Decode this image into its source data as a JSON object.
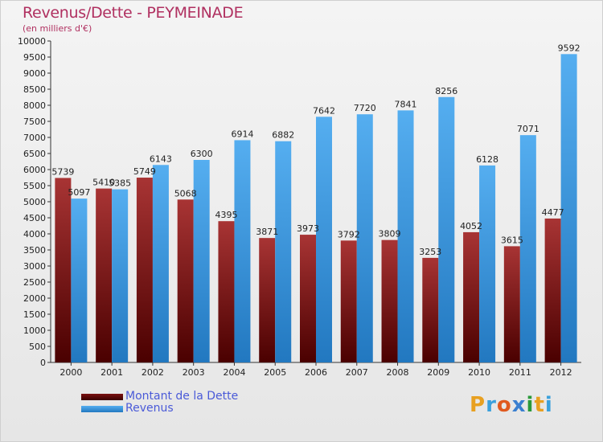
{
  "header": {
    "title": "Revenus/Dette - PEYMEINADE",
    "subtitle": "(en milliers d'€)"
  },
  "legend": {
    "items": [
      {
        "label": "Montant de la Dette",
        "color": "#5e0a0a"
      },
      {
        "label": "Revenus",
        "color": "#3a95dc"
      }
    ]
  },
  "logo": {
    "text": "Proxiti",
    "colors": [
      "#e8a020",
      "#3aa0dc",
      "#e05a20",
      "#3a7fd0",
      "#2a9a3a",
      "#e8a020",
      "#3aa0dc"
    ]
  },
  "chart_data": {
    "type": "bar",
    "title": "Revenus/Dette - PEYMEINADE",
    "subtitle": "(en milliers d'€)",
    "categories": [
      "2000",
      "2001",
      "2002",
      "2003",
      "2004",
      "2005",
      "2006",
      "2007",
      "2008",
      "2009",
      "2010",
      "2011",
      "2012"
    ],
    "series": [
      {
        "name": "Montant de la Dette",
        "values": [
          5739,
          5410,
          5749,
          5068,
          4395,
          3871,
          3973,
          3792,
          3809,
          3253,
          4052,
          3615,
          4477
        ],
        "color": "#8a1a1a"
      },
      {
        "name": "Revenus",
        "values": [
          5097,
          5385,
          6143,
          6300,
          6914,
          6882,
          7642,
          7720,
          7841,
          8256,
          6128,
          7071,
          9592
        ],
        "color": "#3a95dc"
      }
    ],
    "data_labels": [
      [
        "5739",
        "5410",
        "5749",
        "5068",
        "4395",
        "3871",
        "3973",
        "3792",
        "3809",
        "3253",
        "4052",
        "3615",
        "4477"
      ],
      [
        "5097",
        "5385",
        "6143",
        "6300",
        "6914",
        "6882",
        "7642",
        "7720",
        "7841",
        "8256",
        "6128",
        "7071",
        "9592"
      ]
    ],
    "ylim": [
      0,
      10000
    ],
    "ystep": 500,
    "legend_position": "bottom-left",
    "grid": false
  }
}
